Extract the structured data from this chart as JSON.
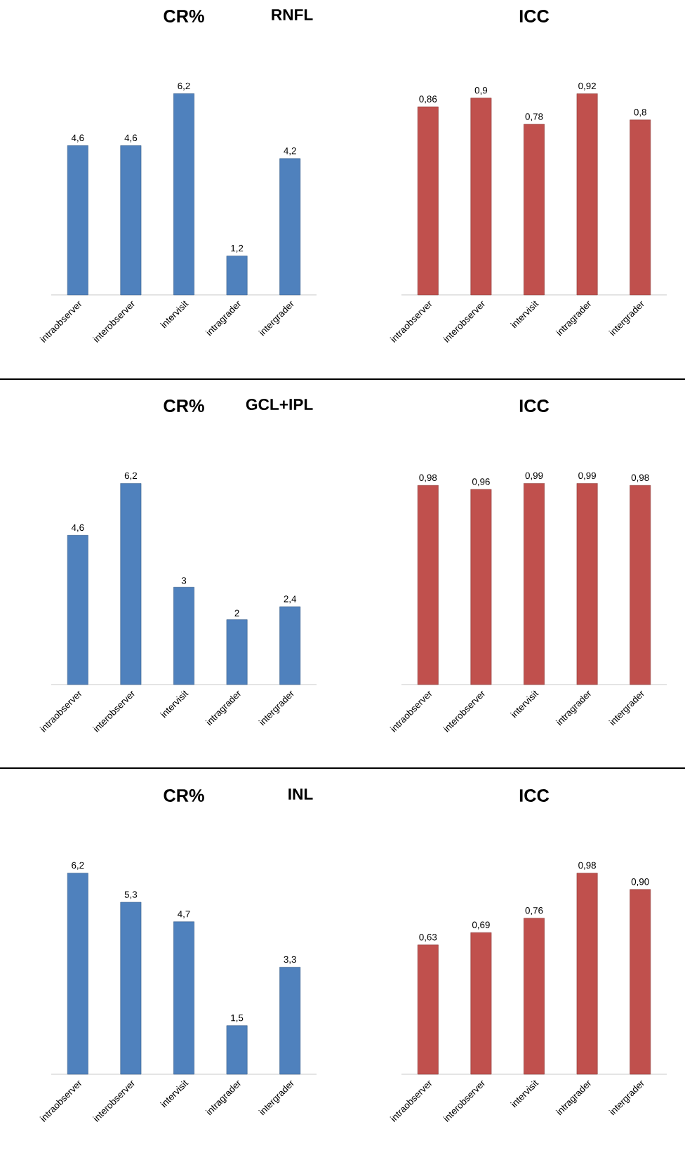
{
  "chart_data": [
    {
      "type": "bar",
      "title": "CR%",
      "subtitle": "RNFL",
      "categories": [
        "intraobserver",
        "interobserver",
        "intervisit",
        "intragrader",
        "intergrader"
      ],
      "values": [
        4.6,
        4.6,
        6.2,
        1.2,
        4.2
      ],
      "value_labels": [
        "4,6",
        "4,6",
        "6,2",
        "1,2",
        "4,2"
      ],
      "color": "#4f81bd"
    },
    {
      "type": "bar",
      "title": "ICC",
      "categories": [
        "intraobserver",
        "interobserver",
        "intervisit",
        "intragrader",
        "intergrader"
      ],
      "values": [
        0.86,
        0.9,
        0.78,
        0.92,
        0.8
      ],
      "value_labels": [
        "0,86",
        "0,9",
        "0,78",
        "0,92",
        "0,8"
      ],
      "color": "#c0504d"
    },
    {
      "type": "bar",
      "title": "CR%",
      "subtitle": "GCL+IPL",
      "categories": [
        "intraobserver",
        "interobserver",
        "intervisit",
        "intragrader",
        "intergrader"
      ],
      "values": [
        4.6,
        6.2,
        3,
        2,
        2.4
      ],
      "value_labels": [
        "4,6",
        "6,2",
        "3",
        "2",
        "2,4"
      ],
      "color": "#4f81bd"
    },
    {
      "type": "bar",
      "title": "ICC",
      "categories": [
        "intraobserver",
        "interobserver",
        "intervisit",
        "intragrader",
        "intergrader"
      ],
      "values": [
        0.98,
        0.96,
        0.99,
        0.99,
        0.98
      ],
      "value_labels": [
        "0,98",
        "0,96",
        "0,99",
        "0,99",
        "0,98"
      ],
      "color": "#c0504d"
    },
    {
      "type": "bar",
      "title": "CR%",
      "subtitle": "INL",
      "categories": [
        "intraobserver",
        "interobserver",
        "intervisit",
        "intragrader",
        "intergrader"
      ],
      "values": [
        6.2,
        5.3,
        4.7,
        1.5,
        3.3
      ],
      "value_labels": [
        "6,2",
        "5,3",
        "4,7",
        "1,5",
        "3,3"
      ],
      "color": "#4f81bd"
    },
    {
      "type": "bar",
      "title": "ICC",
      "categories": [
        "intraobserver",
        "interobserver",
        "intervisit",
        "intragrader",
        "intergrader"
      ],
      "values": [
        0.63,
        0.69,
        0.76,
        0.98,
        0.9
      ],
      "value_labels": [
        "0,63",
        "0,69",
        "0,76",
        "0,98",
        "0,90"
      ],
      "color": "#c0504d"
    }
  ]
}
